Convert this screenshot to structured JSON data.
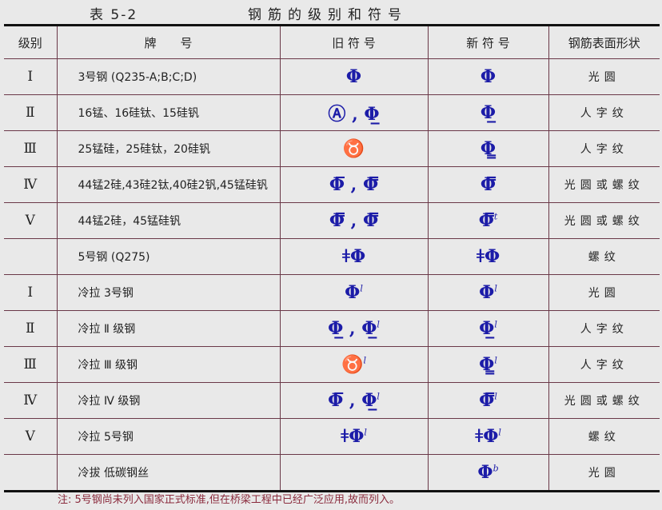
{
  "caption": {
    "number": "表 5-2",
    "title": "钢筋的级别和符号"
  },
  "headers": [
    "级别",
    "牌　　号",
    "旧 符 号",
    "新 符 号",
    "钢筋表面形状"
  ],
  "rows": [
    {
      "grade": "Ⅰ",
      "brand": "3号钢 (Q235-A;B;C;D)",
      "old": "Φ",
      "old_sup": "",
      "new": "Φ",
      "new_sup": "",
      "surface": "光圆"
    },
    {
      "grade": "Ⅱ",
      "brand": "16锰、16硅钛、15硅钒",
      "old": "Ⓐ , Φ̲",
      "old_sup": "",
      "new": "Φ̲",
      "new_sup": "",
      "surface": "人字纹"
    },
    {
      "grade": "Ⅲ",
      "brand": "25锰硅，25硅钛，20硅钒",
      "old": "♉",
      "old_sup": "",
      "new": "Φ̳",
      "new_sup": "",
      "surface": "人字纹"
    },
    {
      "grade": "Ⅳ",
      "brand": "44锰2硅,43硅2钛,40硅2钒,45锰硅钒",
      "old": "Φ̅ , Φ̿",
      "old_sup": "",
      "new": "Φ̿",
      "new_sup": "",
      "surface": "光圆或螺纹"
    },
    {
      "grade": "Ⅴ",
      "brand": "44锰2硅，45锰硅钒",
      "old": "Φ̿ , Φ̿",
      "old_sup": "",
      "new": "Φ̿",
      "new_sup": "t",
      "surface": "光圆或螺纹"
    },
    {
      "grade": "",
      "brand": "5号钢 (Q275)",
      "old": "ǂΦ",
      "old_sup": "",
      "new": "ǂΦ",
      "new_sup": "",
      "surface": "螺纹"
    },
    {
      "grade": "Ⅰ",
      "brand": "冷拉 3号钢",
      "old": "Φ",
      "old_sup": "l",
      "new": "Φ",
      "new_sup": "l",
      "surface": "光圆"
    },
    {
      "grade": "Ⅱ",
      "brand": "冷拉 Ⅱ 级钢",
      "old": "Φ̲ , Φ̲",
      "old_sup": "l",
      "new": "Φ̲",
      "new_sup": "l",
      "surface": "人字纹"
    },
    {
      "grade": "Ⅲ",
      "brand": "冷拉 Ⅲ 级钢",
      "old": "♉",
      "old_sup": "l",
      "new": "Φ̳",
      "new_sup": "l",
      "surface": "人字纹"
    },
    {
      "grade": "Ⅳ",
      "brand": "冷拉 Ⅳ 级钢",
      "old": "Φ̅ , Φ̲",
      "old_sup": "l",
      "new": "Φ̿",
      "new_sup": "l",
      "surface": "光圆或螺纹"
    },
    {
      "grade": "Ⅴ",
      "brand": "冷拉 5号钢",
      "old": "ǂΦ",
      "old_sup": "l",
      "new": "ǂΦ",
      "new_sup": "l",
      "surface": "螺纹"
    },
    {
      "grade": "",
      "brand": "冷拔 低碳钢丝",
      "old": "",
      "old_sup": "",
      "new": "Φ",
      "new_sup": "b",
      "surface": "光圆"
    }
  ],
  "note": "注:  5号钢尚未列入国家正式标准,但在桥梁工程中已经广泛应用,故而列入。",
  "colors": {
    "symbol": "#1c1ca8",
    "rule": "#6a3848",
    "note": "#8a2a3c"
  }
}
